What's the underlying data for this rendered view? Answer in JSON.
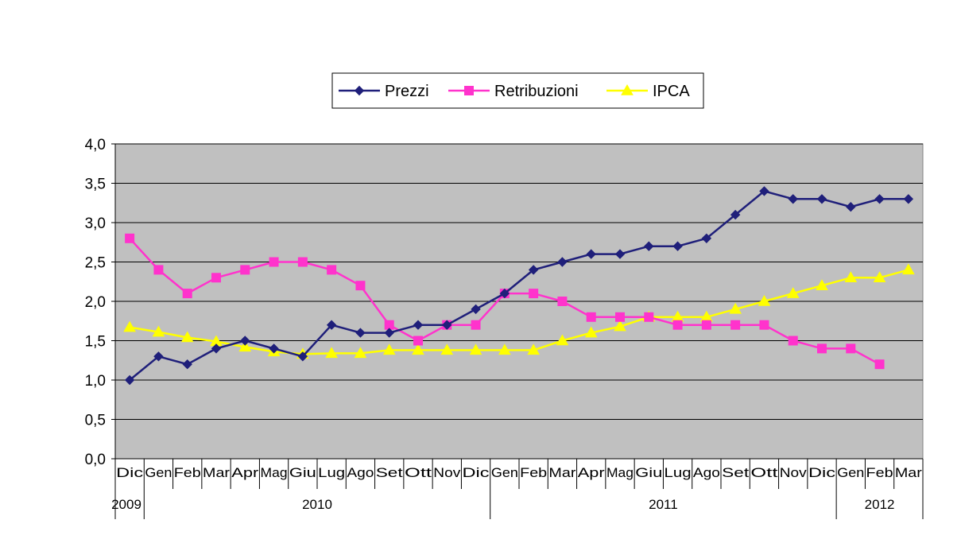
{
  "chart_data": {
    "type": "line",
    "categories": [
      "Dic",
      "Gen",
      "Feb",
      "Mar",
      "Apr",
      "Mag",
      "Giu",
      "Lug",
      "Ago",
      "Set",
      "Ott",
      "Nov",
      "Dic",
      "Gen",
      "Feb",
      "Mar",
      "Apr",
      "Mag",
      "Giu",
      "Lug",
      "Ago",
      "Set",
      "Ott",
      "Nov",
      "Dic",
      "Gen",
      "Feb",
      "Mar"
    ],
    "years": [
      {
        "label": "2009",
        "start": 0,
        "end": 0
      },
      {
        "label": "2010",
        "start": 1,
        "end": 12
      },
      {
        "label": "2011",
        "start": 13,
        "end": 24
      },
      {
        "label": "2012",
        "start": 25,
        "end": 27
      }
    ],
    "series": [
      {
        "name": "Prezzi",
        "color": "#1f1f7a",
        "marker": "diamond",
        "values": [
          1.0,
          1.3,
          1.2,
          1.4,
          1.5,
          1.4,
          1.3,
          1.7,
          1.6,
          1.6,
          1.7,
          1.7,
          1.9,
          2.1,
          2.4,
          2.5,
          2.6,
          2.6,
          2.7,
          2.7,
          2.8,
          3.1,
          3.4,
          3.3,
          3.3,
          3.2,
          3.3,
          3.3
        ]
      },
      {
        "name": "Retribuzioni",
        "color": "#ff33cc",
        "marker": "square",
        "values": [
          2.8,
          2.4,
          2.1,
          2.3,
          2.4,
          2.5,
          2.5,
          2.4,
          2.2,
          1.7,
          1.5,
          1.7,
          1.7,
          2.1,
          2.1,
          2.0,
          1.8,
          1.8,
          1.8,
          1.7,
          1.7,
          1.7,
          1.7,
          1.5,
          1.4,
          1.4,
          1.2,
          null
        ]
      },
      {
        "name": "IPCA",
        "color": "#ffff00",
        "marker": "triangle",
        "values": [
          1.67,
          1.61,
          1.54,
          1.49,
          1.42,
          1.36,
          1.33,
          1.34,
          1.34,
          1.38,
          1.38,
          1.38,
          1.38,
          1.38,
          1.38,
          1.5,
          1.6,
          1.68,
          1.8,
          1.8,
          1.8,
          1.9,
          2.0,
          2.1,
          2.2,
          2.3,
          2.3,
          2.4
        ]
      }
    ],
    "yticks": [
      "0,0",
      "0,5",
      "1,0",
      "1,5",
      "2,0",
      "2,5",
      "3,0",
      "3,5",
      "4,0"
    ],
    "ylim": [
      0,
      4
    ],
    "ystep": 0.5,
    "grid": true,
    "plot_background": "#c0c0c0",
    "legend_position": "top"
  }
}
